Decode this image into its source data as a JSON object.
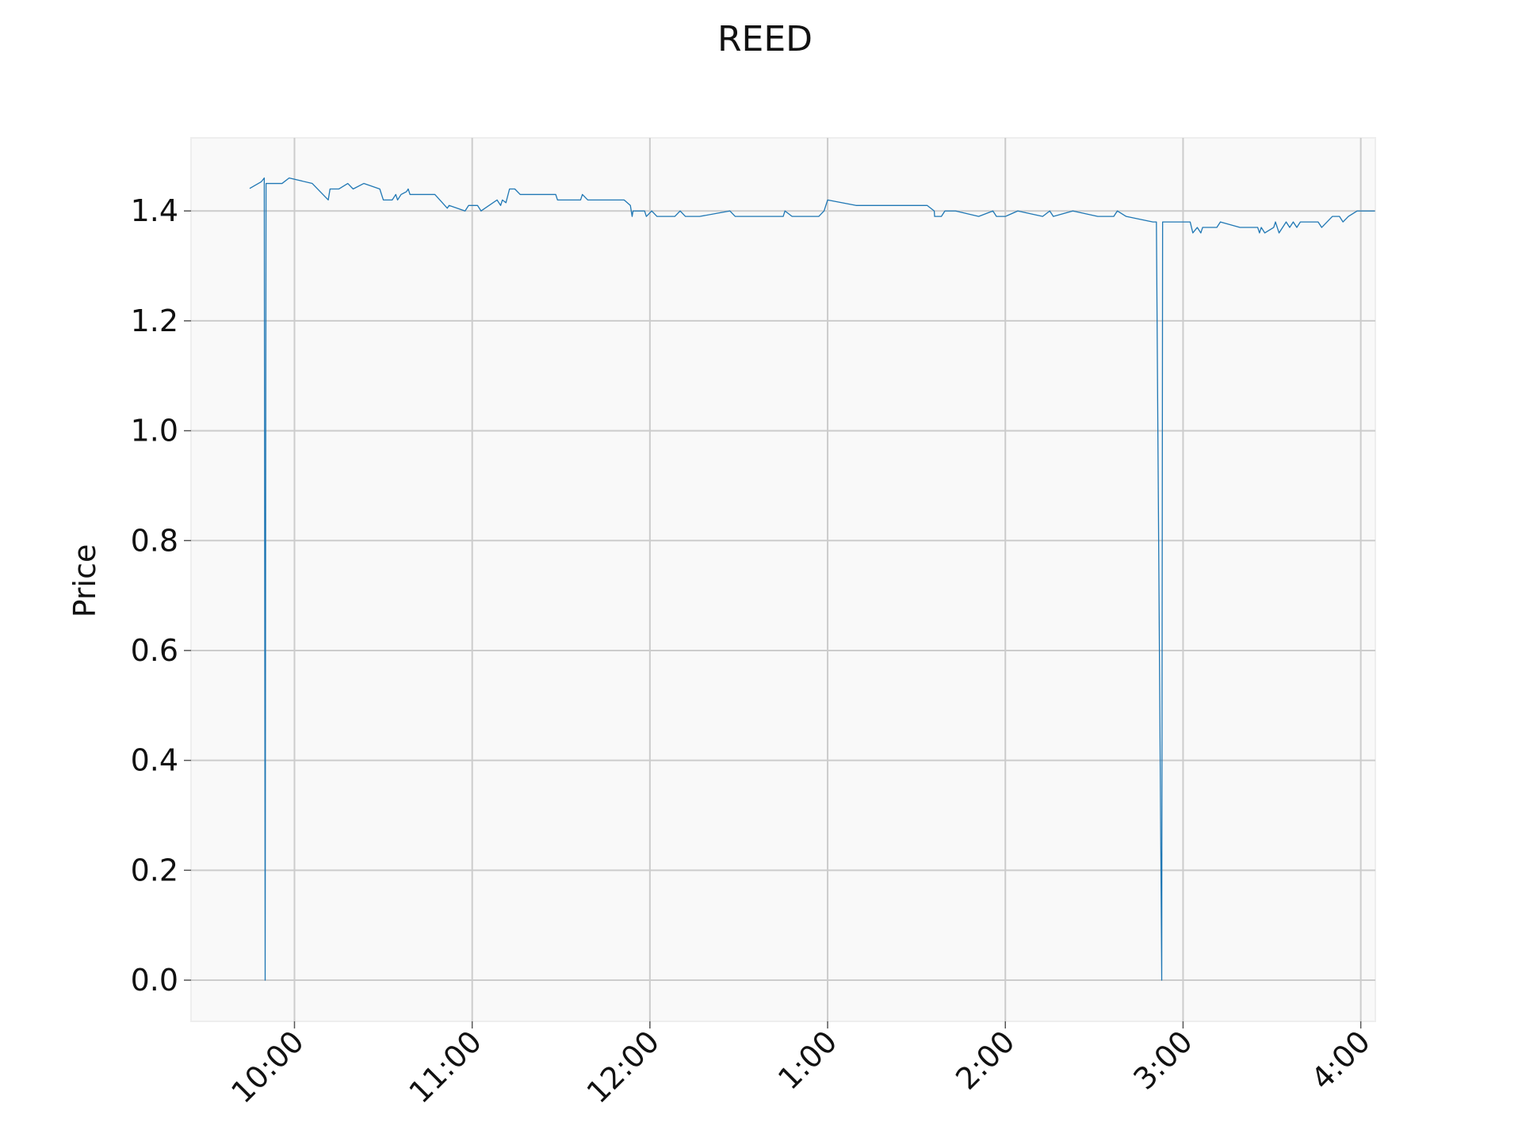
{
  "chart_data": {
    "type": "line",
    "title": "REED",
    "ylabel": "Price",
    "xlim": [
      9.418,
      16.082
    ],
    "ylim": [
      -0.075,
      1.533
    ],
    "xticks": [
      {
        "value": 10,
        "label": "10:00"
      },
      {
        "value": 11,
        "label": "11:00"
      },
      {
        "value": 12,
        "label": "12:00"
      },
      {
        "value": 13,
        "label": "1:00"
      },
      {
        "value": 14,
        "label": "2:00"
      },
      {
        "value": 15,
        "label": "3:00"
      },
      {
        "value": 16,
        "label": "4:00"
      }
    ],
    "yticks": [
      {
        "value": 0,
        "label": "0.0"
      },
      {
        "value": 0.2,
        "label": "0.2"
      },
      {
        "value": 0.4,
        "label": "0.4"
      },
      {
        "value": 0.6,
        "label": "0.6"
      },
      {
        "value": 0.8,
        "label": "0.8"
      },
      {
        "value": 1,
        "label": "1.0"
      },
      {
        "value": 1.2,
        "label": "1.2"
      },
      {
        "value": 1.4,
        "label": "1.4"
      }
    ],
    "grid": true,
    "series": [
      {
        "name": "REED",
        "color": "#1f77b4",
        "x": [
          9.748,
          9.813,
          9.83,
          9.835,
          9.84,
          9.93,
          9.97,
          10.1,
          10.19,
          10.2,
          10.25,
          10.3,
          10.33,
          10.39,
          10.48,
          10.5,
          10.55,
          10.57,
          10.58,
          10.6,
          10.63,
          10.64,
          10.65,
          10.79,
          10.86,
          10.87,
          10.96,
          10.98,
          11.03,
          11.05,
          11.14,
          11.16,
          11.17,
          11.19,
          11.21,
          11.24,
          11.27,
          11.47,
          11.48,
          11.61,
          11.62,
          11.65,
          11.855,
          11.89,
          11.9,
          11.905,
          11.97,
          11.98,
          12.01,
          12.04,
          12.14,
          12.17,
          12.2,
          12.28,
          12.45,
          12.48,
          12.75,
          12.76,
          12.8,
          12.95,
          12.98,
          13.0,
          13.16,
          13.56,
          13.6,
          13.602,
          13.64,
          13.66,
          13.72,
          13.85,
          13.93,
          13.95,
          14.0,
          14.07,
          14.21,
          14.25,
          14.27,
          14.38,
          14.52,
          14.61,
          14.63,
          14.68,
          14.83,
          14.85,
          14.88,
          14.885,
          15.04,
          15.055,
          15.08,
          15.1,
          15.11,
          15.19,
          15.21,
          15.32,
          15.42,
          15.43,
          15.44,
          15.46,
          15.51,
          15.52,
          15.54,
          15.58,
          15.6,
          15.62,
          15.64,
          15.66,
          15.76,
          15.78,
          15.84,
          15.88,
          15.9,
          15.93,
          15.98,
          16.08
        ],
        "values": [
          1.441,
          1.453,
          1.46,
          0,
          1.45,
          1.45,
          1.46,
          1.45,
          1.42,
          1.44,
          1.44,
          1.45,
          1.44,
          1.45,
          1.44,
          1.42,
          1.42,
          1.43,
          1.42,
          1.43,
          1.435,
          1.44,
          1.43,
          1.43,
          1.405,
          1.41,
          1.4,
          1.41,
          1.41,
          1.4,
          1.42,
          1.41,
          1.42,
          1.415,
          1.44,
          1.44,
          1.43,
          1.43,
          1.42,
          1.42,
          1.43,
          1.42,
          1.42,
          1.41,
          1.39,
          1.4,
          1.4,
          1.39,
          1.4,
          1.39,
          1.39,
          1.4,
          1.39,
          1.39,
          1.4,
          1.39,
          1.39,
          1.4,
          1.39,
          1.39,
          1.4,
          1.42,
          1.41,
          1.41,
          1.4,
          1.39,
          1.39,
          1.4,
          1.4,
          1.39,
          1.4,
          1.39,
          1.39,
          1.4,
          1.39,
          1.4,
          1.39,
          1.4,
          1.39,
          1.39,
          1.4,
          1.39,
          1.38,
          1.38,
          0,
          1.38,
          1.38,
          1.36,
          1.37,
          1.36,
          1.37,
          1.37,
          1.38,
          1.37,
          1.37,
          1.36,
          1.37,
          1.36,
          1.37,
          1.38,
          1.36,
          1.38,
          1.37,
          1.38,
          1.37,
          1.38,
          1.38,
          1.37,
          1.39,
          1.39,
          1.38,
          1.39,
          1.4,
          1.4
        ]
      }
    ]
  }
}
